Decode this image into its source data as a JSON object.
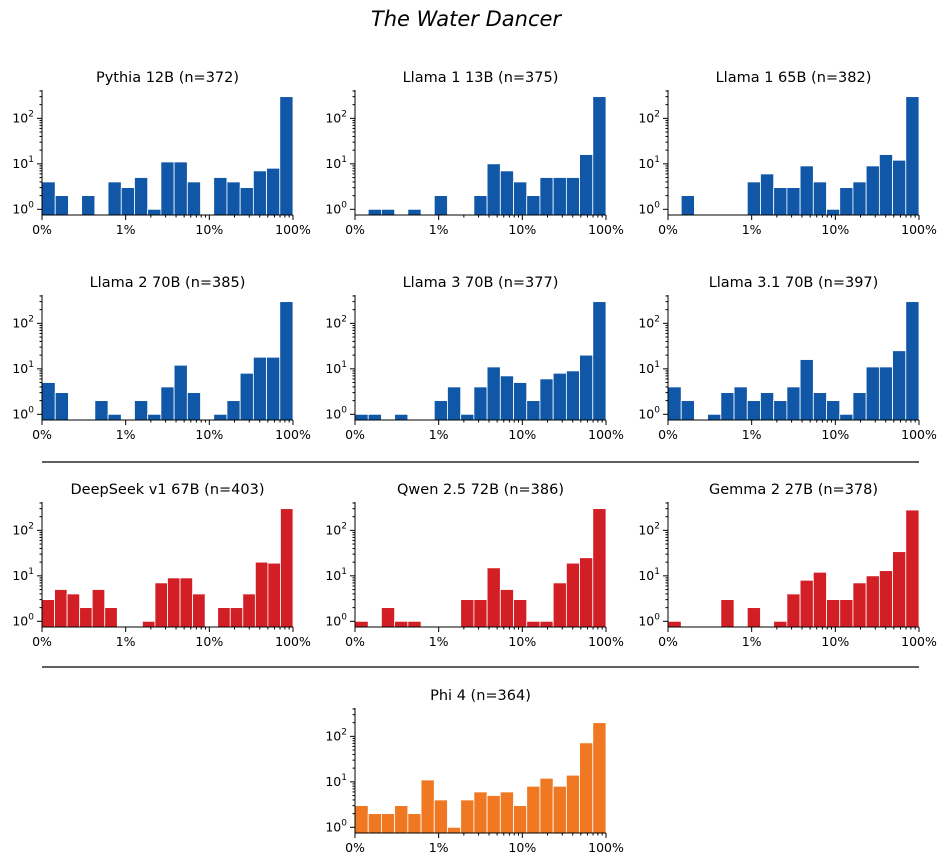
{
  "figure": {
    "title": "The Water Dancer"
  },
  "colors": {
    "blue": "#1057a8",
    "red": "#d11f25",
    "orange": "#f07822"
  },
  "chart_data": [
    {
      "type": "bar",
      "title": "Pythia 12B (n=372)",
      "color": "blue",
      "yscale": "log",
      "xticks": [
        "0%",
        "1%",
        "10%",
        "100%"
      ],
      "yticks": [
        "10^0",
        "10^1",
        "10^2"
      ],
      "values": [
        4,
        2,
        0,
        2,
        0,
        4,
        3,
        5,
        1,
        11,
        11,
        4,
        0,
        5,
        4,
        3,
        7,
        8,
        300
      ]
    },
    {
      "type": "bar",
      "title": "Llama 1 13B (n=375)",
      "color": "blue",
      "yscale": "log",
      "xticks": [
        "0%",
        "1%",
        "10%",
        "100%"
      ],
      "yticks": [
        "10^0",
        "10^1",
        "10^2"
      ],
      "values": [
        0,
        1,
        1,
        0,
        1,
        0,
        2,
        0,
        0,
        2,
        10,
        7,
        4,
        2,
        5,
        5,
        5,
        16,
        300
      ]
    },
    {
      "type": "bar",
      "title": "Llama 1 65B (n=382)",
      "color": "blue",
      "yscale": "log",
      "xticks": [
        "0%",
        "1%",
        "10%",
        "100%"
      ],
      "yticks": [
        "10^0",
        "10^1",
        "10^2"
      ],
      "values": [
        0,
        2,
        0,
        0,
        0,
        0,
        4,
        6,
        3,
        3,
        9,
        4,
        1,
        3,
        4,
        9,
        16,
        12,
        300
      ]
    },
    {
      "type": "bar",
      "title": "Llama 2 70B (n=385)",
      "color": "blue",
      "yscale": "log",
      "xticks": [
        "0%",
        "1%",
        "10%",
        "100%"
      ],
      "yticks": [
        "10^0",
        "10^1",
        "10^2"
      ],
      "values": [
        5,
        3,
        0,
        0,
        2,
        1,
        0,
        2,
        1,
        4,
        12,
        3,
        0,
        1,
        2,
        8,
        18,
        18,
        300
      ]
    },
    {
      "type": "bar",
      "title": "Llama 3 70B (n=377)",
      "color": "blue",
      "yscale": "log",
      "xticks": [
        "0%",
        "1%",
        "10%",
        "100%"
      ],
      "yticks": [
        "10^0",
        "10^1",
        "10^2"
      ],
      "values": [
        1,
        1,
        0,
        1,
        0,
        0,
        2,
        4,
        1,
        4,
        11,
        7,
        5,
        2,
        6,
        8,
        9,
        20,
        300
      ]
    },
    {
      "type": "bar",
      "title": "Llama 3.1 70B (n=397)",
      "color": "blue",
      "yscale": "log",
      "xticks": [
        "0%",
        "1%",
        "10%",
        "100%"
      ],
      "yticks": [
        "10^0",
        "10^1",
        "10^2"
      ],
      "values": [
        4,
        2,
        0,
        1,
        3,
        4,
        2,
        3,
        2,
        4,
        16,
        3,
        2,
        1,
        3,
        11,
        11,
        25,
        300
      ]
    },
    {
      "type": "bar",
      "title": "DeepSeek v1 67B (n=403)",
      "color": "red",
      "yscale": "log",
      "xticks": [
        "0%",
        "1%",
        "10%",
        "100%"
      ],
      "yticks": [
        "10^0",
        "10^1",
        "10^2"
      ],
      "values": [
        3,
        5,
        4,
        2,
        5,
        2,
        0,
        0,
        1,
        7,
        9,
        9,
        4,
        0,
        2,
        2,
        4,
        20,
        19,
        300
      ]
    },
    {
      "type": "bar",
      "title": "Qwen 2.5 72B (n=386)",
      "color": "red",
      "yscale": "log",
      "xticks": [
        "0%",
        "1%",
        "10%",
        "100%"
      ],
      "yticks": [
        "10^0",
        "10^1",
        "10^2"
      ],
      "values": [
        1,
        0,
        2,
        1,
        1,
        0,
        0,
        0,
        3,
        3,
        15,
        5,
        3,
        1,
        1,
        7,
        19,
        25,
        300
      ]
    },
    {
      "type": "bar",
      "title": "Gemma 2 27B (n=378)",
      "color": "red",
      "yscale": "log",
      "xticks": [
        "0%",
        "1%",
        "10%",
        "100%"
      ],
      "yticks": [
        "10^0",
        "10^1",
        "10^2"
      ],
      "values": [
        1,
        0,
        0,
        0,
        3,
        0,
        2,
        0,
        1,
        4,
        8,
        12,
        3,
        3,
        7,
        10,
        13,
        34,
        280
      ]
    },
    {
      "type": "bar",
      "title": "Phi 4 (n=364)",
      "color": "orange",
      "yscale": "log",
      "xticks": [
        "0%",
        "1%",
        "10%",
        "100%"
      ],
      "yticks": [
        "10^0",
        "10^1",
        "10^2"
      ],
      "values": [
        3,
        2,
        2,
        3,
        2,
        11,
        4,
        1,
        4,
        6,
        5,
        6,
        3,
        8,
        12,
        8,
        14,
        72,
        200
      ]
    }
  ]
}
